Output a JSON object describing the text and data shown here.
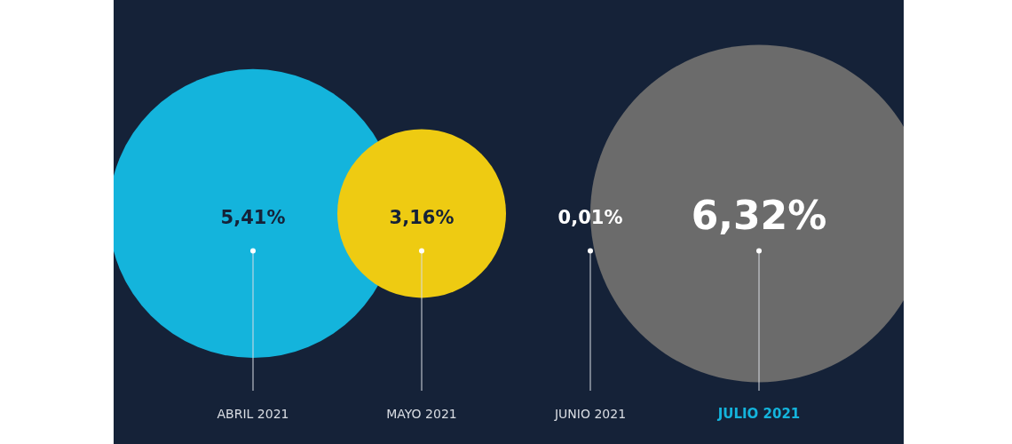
{
  "chart_data": {
    "type": "other",
    "categories": [
      "ABRIL 2021",
      "MAYO 2021",
      "JUNIO 2021",
      "JULIO 2021"
    ],
    "values": [
      5.41,
      3.16,
      0.01,
      6.32
    ],
    "value_labels": [
      "5,41%",
      "3,16%",
      "0,01%",
      "6,32%"
    ],
    "colors": [
      "#14b4dc",
      "#eecb12",
      "#152238",
      "#6b6b6b"
    ],
    "data_labels": true,
    "legend": false
  }
}
